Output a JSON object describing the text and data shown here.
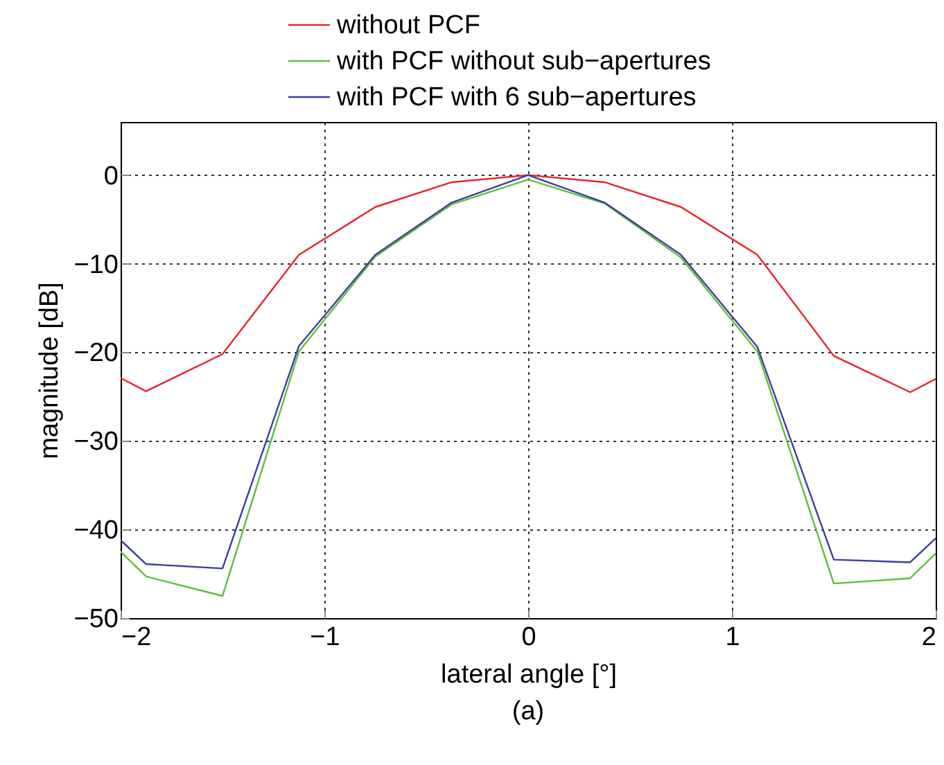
{
  "chart_data": {
    "type": "line",
    "xlabel": "lateral angle [°]",
    "ylabel": "magnitude [dB]",
    "annotations": [
      "(a)"
    ],
    "x": [
      -2,
      -1.875,
      -1.5,
      -1.125,
      -0.75,
      -0.375,
      0,
      0.375,
      0.75,
      1.125,
      1.5,
      1.875,
      2
    ],
    "series": [
      {
        "name": "without PCF",
        "color": "#e8242a",
        "values": [
          -22.9,
          -24.4,
          -20.2,
          -9,
          -3.6,
          -0.8,
          0,
          -0.8,
          -3.6,
          -9,
          -20.4,
          -24.5,
          -23
        ]
      },
      {
        "name": "with PCF without sub−apertures",
        "color": "#5cbf3a",
        "values": [
          -42.5,
          -45.3,
          -47.5,
          -19.9,
          -9.2,
          -3.3,
          -0.5,
          -3.2,
          -9.3,
          -19.9,
          -46.1,
          -45.5,
          -42.7
        ]
      },
      {
        "name": "with PCF with 6 sub−apertures",
        "color": "#3a3f9e",
        "values": [
          -41.2,
          -43.9,
          -44.4,
          -19.3,
          -9,
          -3.1,
          0,
          -3.1,
          -9,
          -19.4,
          -43.4,
          -43.7,
          -41
        ]
      }
    ],
    "xlim": [
      -2,
      2
    ],
    "xticks": [
      {
        "value": -2,
        "label": "−2"
      },
      {
        "value": -1,
        "label": "−1"
      },
      0,
      1,
      2
    ],
    "ylim": [
      -50,
      6
    ],
    "yticks": [
      {
        "value": -50,
        "label": "−50"
      },
      {
        "value": -40,
        "label": "−40"
      },
      {
        "value": -30,
        "label": "−30"
      },
      {
        "value": -20,
        "label": "−20"
      },
      {
        "value": -10,
        "label": "−10"
      },
      0
    ],
    "grid": true,
    "legend": "top",
    "marker": "none",
    "line_style": "solid"
  }
}
